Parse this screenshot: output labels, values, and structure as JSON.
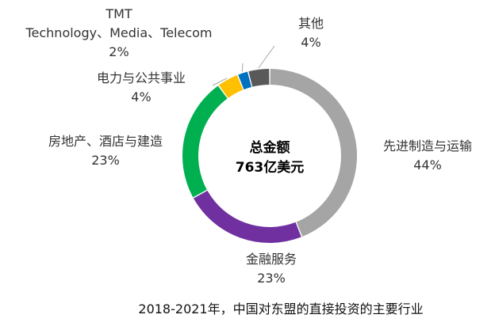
{
  "chart_data": {
    "type": "pie",
    "donut": true,
    "center_label": [
      "总金额",
      "763亿美元"
    ],
    "slices": [
      {
        "name": "先进制造与运输",
        "percent": 44,
        "value_label": "44%",
        "color": "#a5a5a5"
      },
      {
        "name": "金融服务",
        "percent": 23,
        "value_label": "23%",
        "color": "#7030a0"
      },
      {
        "name": "房地产、酒店与建造",
        "percent": 23,
        "value_label": "23%",
        "color": "#00b050"
      },
      {
        "name": "电力与公共事业",
        "percent": 4,
        "value_label": "4%",
        "color": "#ffc000"
      },
      {
        "name_lines": [
          "TMT",
          "Technology、Media、Telecom"
        ],
        "percent": 2,
        "value_label": "2%",
        "color": "#0070c0"
      },
      {
        "name": "其他",
        "percent": 4,
        "value_label": "4%",
        "color": "#595959"
      }
    ],
    "caption": "2018-2021年，中国对东盟的直接投资的主要行业",
    "legend": "none"
  }
}
